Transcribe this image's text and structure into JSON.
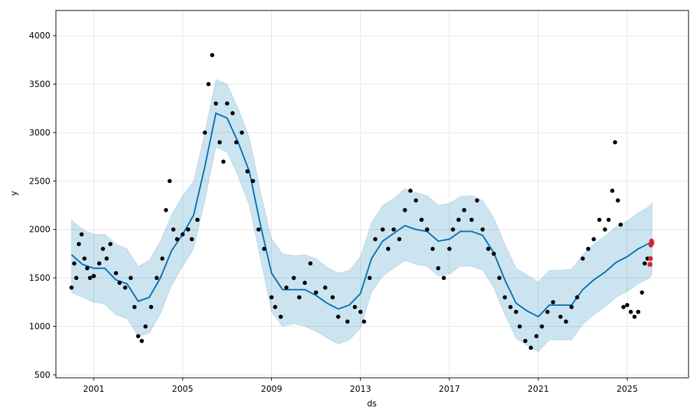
{
  "chart_data": {
    "type": "scatter",
    "xlabel": "ds",
    "ylabel": "y",
    "xlim": [
      "1999-04-20",
      "2027-10-05"
    ],
    "ylim": [
      470,
      4260
    ],
    "grid": true,
    "x_ticks": [
      "2001",
      "2005",
      "2009",
      "2013",
      "2017",
      "2021",
      "2025"
    ],
    "y_ticks": [
      500,
      1000,
      1500,
      2000,
      2500,
      3000,
      3500,
      4000
    ],
    "colors": {
      "observed": "#000000",
      "forecast_line": "#0072B2",
      "interval_fill": "#0072B2",
      "future_points": "#d62728",
      "grid": "#e6e6e6"
    },
    "series": [
      {
        "kind": "observed",
        "points": [
          [
            "2000-01-01",
            1400
          ],
          [
            "2000-02-15",
            1650
          ],
          [
            "2000-03-20",
            1500
          ],
          [
            "2000-05-01",
            1850
          ],
          [
            "2000-06-15",
            1950
          ],
          [
            "2000-08-01",
            1700
          ],
          [
            "2000-09-15",
            1600
          ],
          [
            "2000-11-01",
            1500
          ],
          [
            "2001-01-01",
            1520
          ],
          [
            "2001-04-01",
            1650
          ],
          [
            "2001-06-01",
            1800
          ],
          [
            "2001-08-01",
            1700
          ],
          [
            "2001-10-01",
            1850
          ],
          [
            "2002-01-01",
            1550
          ],
          [
            "2002-03-01",
            1450
          ],
          [
            "2002-06-01",
            1400
          ],
          [
            "2002-09-01",
            1500
          ],
          [
            "2002-11-01",
            1200
          ],
          [
            "2003-01-01",
            900
          ],
          [
            "2003-03-01",
            850
          ],
          [
            "2003-05-01",
            1000
          ],
          [
            "2003-08-01",
            1200
          ],
          [
            "2003-11-01",
            1500
          ],
          [
            "2004-02-01",
            1700
          ],
          [
            "2004-04-01",
            2200
          ],
          [
            "2004-06-01",
            2500
          ],
          [
            "2004-08-01",
            2000
          ],
          [
            "2004-10-01",
            1900
          ],
          [
            "2005-01-01",
            1950
          ],
          [
            "2005-04-01",
            2000
          ],
          [
            "2005-06-01",
            1900
          ],
          [
            "2005-09-01",
            2100
          ],
          [
            "2006-01-01",
            3000
          ],
          [
            "2006-03-01",
            3500
          ],
          [
            "2006-05-01",
            3800
          ],
          [
            "2006-07-01",
            3300
          ],
          [
            "2006-09-01",
            2900
          ],
          [
            "2006-11-01",
            2700
          ],
          [
            "2007-01-01",
            3300
          ],
          [
            "2007-04-01",
            3200
          ],
          [
            "2007-06-01",
            2900
          ],
          [
            "2007-09-01",
            3000
          ],
          [
            "2007-12-01",
            2600
          ],
          [
            "2008-03-01",
            2500
          ],
          [
            "2008-06-01",
            2000
          ],
          [
            "2008-09-01",
            1800
          ],
          [
            "2009-01-01",
            1300
          ],
          [
            "2009-03-01",
            1200
          ],
          [
            "2009-06-01",
            1100
          ],
          [
            "2009-09-01",
            1400
          ],
          [
            "2010-01-01",
            1500
          ],
          [
            "2010-04-01",
            1300
          ],
          [
            "2010-07-01",
            1450
          ],
          [
            "2010-10-01",
            1650
          ],
          [
            "2011-01-01",
            1350
          ],
          [
            "2011-06-01",
            1400
          ],
          [
            "2011-10-01",
            1300
          ],
          [
            "2012-01-01",
            1100
          ],
          [
            "2012-06-01",
            1050
          ],
          [
            "2012-10-01",
            1200
          ],
          [
            "2013-01-01",
            1150
          ],
          [
            "2013-03-01",
            1050
          ],
          [
            "2013-06-01",
            1500
          ],
          [
            "2013-09-01",
            1900
          ],
          [
            "2014-01-01",
            2000
          ],
          [
            "2014-04-01",
            1800
          ],
          [
            "2014-07-01",
            2000
          ],
          [
            "2014-10-01",
            1900
          ],
          [
            "2015-01-01",
            2200
          ],
          [
            "2015-04-01",
            2400
          ],
          [
            "2015-07-01",
            2300
          ],
          [
            "2015-10-01",
            2100
          ],
          [
            "2016-01-01",
            2000
          ],
          [
            "2016-04-01",
            1800
          ],
          [
            "2016-07-01",
            1600
          ],
          [
            "2016-10-01",
            1500
          ],
          [
            "2017-01-01",
            1800
          ],
          [
            "2017-03-01",
            2000
          ],
          [
            "2017-06-01",
            2100
          ],
          [
            "2017-09-01",
            2200
          ],
          [
            "2018-01-01",
            2100
          ],
          [
            "2018-04-01",
            2300
          ],
          [
            "2018-07-01",
            2000
          ],
          [
            "2018-10-01",
            1800
          ],
          [
            "2019-01-01",
            1750
          ],
          [
            "2019-04-01",
            1500
          ],
          [
            "2019-07-01",
            1300
          ],
          [
            "2019-10-01",
            1200
          ],
          [
            "2020-01-01",
            1150
          ],
          [
            "2020-03-01",
            1000
          ],
          [
            "2020-06-01",
            850
          ],
          [
            "2020-09-01",
            780
          ],
          [
            "2020-12-01",
            900
          ],
          [
            "2021-03-01",
            1000
          ],
          [
            "2021-06-01",
            1150
          ],
          [
            "2021-09-01",
            1250
          ],
          [
            "2022-01-01",
            1100
          ],
          [
            "2022-04-01",
            1050
          ],
          [
            "2022-07-01",
            1200
          ],
          [
            "2022-10-01",
            1300
          ],
          [
            "2023-01-01",
            1700
          ],
          [
            "2023-04-01",
            1800
          ],
          [
            "2023-07-01",
            1900
          ],
          [
            "2023-10-01",
            2100
          ],
          [
            "2024-01-01",
            2000
          ],
          [
            "2024-03-01",
            2100
          ],
          [
            "2024-05-01",
            2400
          ],
          [
            "2024-06-15",
            2900
          ],
          [
            "2024-08-01",
            2300
          ],
          [
            "2024-09-15",
            2050
          ],
          [
            "2024-11-01",
            1200
          ],
          [
            "2025-01-01",
            1220
          ],
          [
            "2025-03-01",
            1150
          ],
          [
            "2025-05-01",
            1100
          ],
          [
            "2025-07-01",
            1150
          ],
          [
            "2025-09-01",
            1350
          ],
          [
            "2025-10-15",
            1650
          ],
          [
            "2025-12-01",
            1700
          ]
        ]
      },
      {
        "kind": "forecast",
        "points": [
          [
            "2000-01-01",
            1740
          ],
          [
            "2000-07-01",
            1640
          ],
          [
            "2001-01-01",
            1600
          ],
          [
            "2001-07-01",
            1600
          ],
          [
            "2002-01-01",
            1480
          ],
          [
            "2002-07-01",
            1440
          ],
          [
            "2003-01-01",
            1260
          ],
          [
            "2003-07-01",
            1300
          ],
          [
            "2004-01-01",
            1500
          ],
          [
            "2004-07-01",
            1780
          ],
          [
            "2005-01-01",
            1950
          ],
          [
            "2005-07-01",
            2150
          ],
          [
            "2006-01-01",
            2650
          ],
          [
            "2006-07-01",
            3200
          ],
          [
            "2007-01-01",
            3150
          ],
          [
            "2007-07-01",
            2900
          ],
          [
            "2008-01-01",
            2600
          ],
          [
            "2008-07-01",
            2050
          ],
          [
            "2009-01-01",
            1550
          ],
          [
            "2009-07-01",
            1380
          ],
          [
            "2010-01-01",
            1380
          ],
          [
            "2010-07-01",
            1380
          ],
          [
            "2011-01-01",
            1320
          ],
          [
            "2011-07-01",
            1240
          ],
          [
            "2012-01-01",
            1180
          ],
          [
            "2012-07-01",
            1220
          ],
          [
            "2013-01-01",
            1340
          ],
          [
            "2013-07-01",
            1700
          ],
          [
            "2014-01-01",
            1880
          ],
          [
            "2014-07-01",
            1960
          ],
          [
            "2015-01-01",
            2040
          ],
          [
            "2015-07-01",
            2000
          ],
          [
            "2016-01-01",
            1980
          ],
          [
            "2016-07-01",
            1880
          ],
          [
            "2017-01-01",
            1900
          ],
          [
            "2017-07-01",
            1980
          ],
          [
            "2018-01-01",
            1980
          ],
          [
            "2018-07-01",
            1940
          ],
          [
            "2019-01-01",
            1760
          ],
          [
            "2019-07-01",
            1480
          ],
          [
            "2020-01-01",
            1240
          ],
          [
            "2020-07-01",
            1160
          ],
          [
            "2021-01-01",
            1100
          ],
          [
            "2021-07-01",
            1220
          ],
          [
            "2022-01-01",
            1220
          ],
          [
            "2022-07-01",
            1220
          ],
          [
            "2023-01-01",
            1380
          ],
          [
            "2023-07-01",
            1480
          ],
          [
            "2024-01-01",
            1560
          ],
          [
            "2024-07-01",
            1660
          ],
          [
            "2025-01-01",
            1720
          ],
          [
            "2025-07-01",
            1800
          ],
          [
            "2026-01-01",
            1860
          ],
          [
            "2026-02-15",
            1890
          ]
        ]
      },
      {
        "kind": "interval",
        "points": [
          [
            "2000-01-01",
            1350,
            2100
          ],
          [
            "2000-07-01",
            1300,
            2000
          ],
          [
            "2001-01-01",
            1250,
            1950
          ],
          [
            "2001-07-01",
            1230,
            1950
          ],
          [
            "2002-01-01",
            1120,
            1850
          ],
          [
            "2002-07-01",
            1080,
            1800
          ],
          [
            "2003-01-01",
            900,
            1620
          ],
          [
            "2003-07-01",
            930,
            1680
          ],
          [
            "2004-01-01",
            1130,
            1880
          ],
          [
            "2004-07-01",
            1420,
            2150
          ],
          [
            "2005-01-01",
            1620,
            2350
          ],
          [
            "2005-07-01",
            1800,
            2500
          ],
          [
            "2006-01-01",
            2300,
            3000
          ],
          [
            "2006-07-01",
            2850,
            3550
          ],
          [
            "2007-01-01",
            2800,
            3500
          ],
          [
            "2007-07-01",
            2550,
            3250
          ],
          [
            "2008-01-01",
            2250,
            2950
          ],
          [
            "2008-07-01",
            1700,
            2400
          ],
          [
            "2009-01-01",
            1150,
            1900
          ],
          [
            "2009-07-01",
            1000,
            1750
          ],
          [
            "2010-01-01",
            1030,
            1730
          ],
          [
            "2010-07-01",
            1000,
            1740
          ],
          [
            "2011-01-01",
            950,
            1700
          ],
          [
            "2011-07-01",
            880,
            1610
          ],
          [
            "2012-01-01",
            820,
            1550
          ],
          [
            "2012-07-01",
            860,
            1580
          ],
          [
            "2013-01-01",
            980,
            1720
          ],
          [
            "2013-07-01",
            1350,
            2070
          ],
          [
            "2014-01-01",
            1520,
            2250
          ],
          [
            "2014-07-01",
            1600,
            2320
          ],
          [
            "2015-01-01",
            1680,
            2420
          ],
          [
            "2015-07-01",
            1640,
            2380
          ],
          [
            "2016-01-01",
            1620,
            2350
          ],
          [
            "2016-07-01",
            1520,
            2250
          ],
          [
            "2017-01-01",
            1540,
            2270
          ],
          [
            "2017-07-01",
            1620,
            2340
          ],
          [
            "2018-01-01",
            1620,
            2350
          ],
          [
            "2018-07-01",
            1580,
            2300
          ],
          [
            "2019-01-01",
            1400,
            2120
          ],
          [
            "2019-07-01",
            1120,
            1850
          ],
          [
            "2020-01-01",
            880,
            1600
          ],
          [
            "2020-07-01",
            800,
            1530
          ],
          [
            "2021-01-01",
            740,
            1460
          ],
          [
            "2021-07-01",
            860,
            1580
          ],
          [
            "2022-01-01",
            860,
            1580
          ],
          [
            "2022-07-01",
            860,
            1590
          ],
          [
            "2023-01-01",
            1020,
            1740
          ],
          [
            "2023-07-01",
            1120,
            1850
          ],
          [
            "2024-01-01",
            1200,
            1930
          ],
          [
            "2024-07-01",
            1300,
            2030
          ],
          [
            "2025-01-01",
            1360,
            2090
          ],
          [
            "2025-07-01",
            1440,
            2170
          ],
          [
            "2026-01-01",
            1500,
            2240
          ],
          [
            "2026-02-15",
            1540,
            2280
          ]
        ]
      },
      {
        "kind": "future_observed",
        "points": [
          [
            "2026-01-10",
            1640
          ],
          [
            "2026-01-18",
            1700
          ],
          [
            "2026-01-26",
            1840
          ],
          [
            "2026-02-05",
            1880
          ],
          [
            "2026-02-12",
            1860
          ]
        ]
      }
    ]
  }
}
